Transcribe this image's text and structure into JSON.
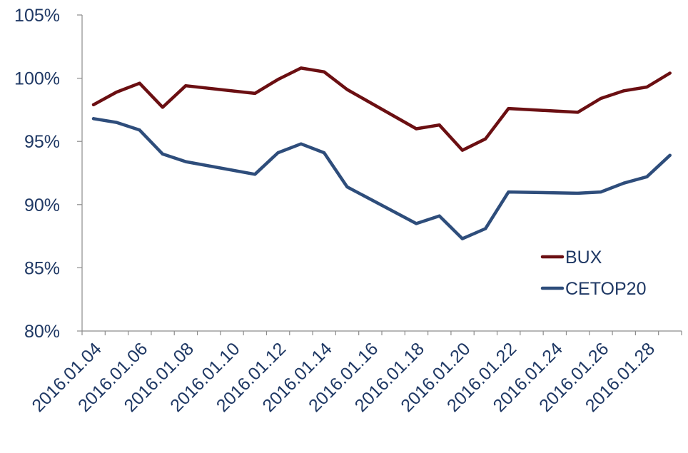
{
  "chart_data": {
    "type": "line",
    "x_tick_labels": [
      "2016.01.04",
      "2016.01.06",
      "2016.01.08",
      "2016.01.10",
      "2016.01.12",
      "2016.01.14",
      "2016.01.16",
      "2016.01.18",
      "2016.01.20",
      "2016.01.22",
      "2016.01.24",
      "2016.01.26",
      "2016.01.28"
    ],
    "y_tick_labels": [
      "80%",
      "85%",
      "90%",
      "95%",
      "100%",
      "105%"
    ],
    "y_ticks": [
      80,
      85,
      90,
      95,
      100,
      105
    ],
    "ylim": [
      80,
      105
    ],
    "xlim": [
      "2016.01.04",
      "2016.01.30"
    ],
    "grid": false,
    "legend_position": "right",
    "x": [
      "2016.01.04",
      "2016.01.05",
      "2016.01.06",
      "2016.01.07",
      "2016.01.08",
      "2016.01.11",
      "2016.01.12",
      "2016.01.13",
      "2016.01.14",
      "2016.01.15",
      "2016.01.18",
      "2016.01.19",
      "2016.01.20",
      "2016.01.21",
      "2016.01.22",
      "2016.01.25",
      "2016.01.26",
      "2016.01.27",
      "2016.01.28",
      "2016.01.29"
    ],
    "series": [
      {
        "name": "BUX",
        "color": "#6b0f12",
        "values": [
          97.9,
          98.9,
          99.6,
          97.7,
          99.4,
          98.8,
          99.9,
          100.8,
          100.5,
          99.1,
          96.0,
          96.3,
          94.3,
          95.2,
          97.6,
          97.3,
          98.4,
          99.0,
          99.3,
          100.4
        ]
      },
      {
        "name": "CETOP20",
        "color": "#2e4d7b",
        "values": [
          96.8,
          96.5,
          95.9,
          94.0,
          93.4,
          92.4,
          94.1,
          94.8,
          94.1,
          91.4,
          88.5,
          89.1,
          87.3,
          88.1,
          91.0,
          90.9,
          91.0,
          91.7,
          92.2,
          93.9
        ]
      }
    ]
  }
}
